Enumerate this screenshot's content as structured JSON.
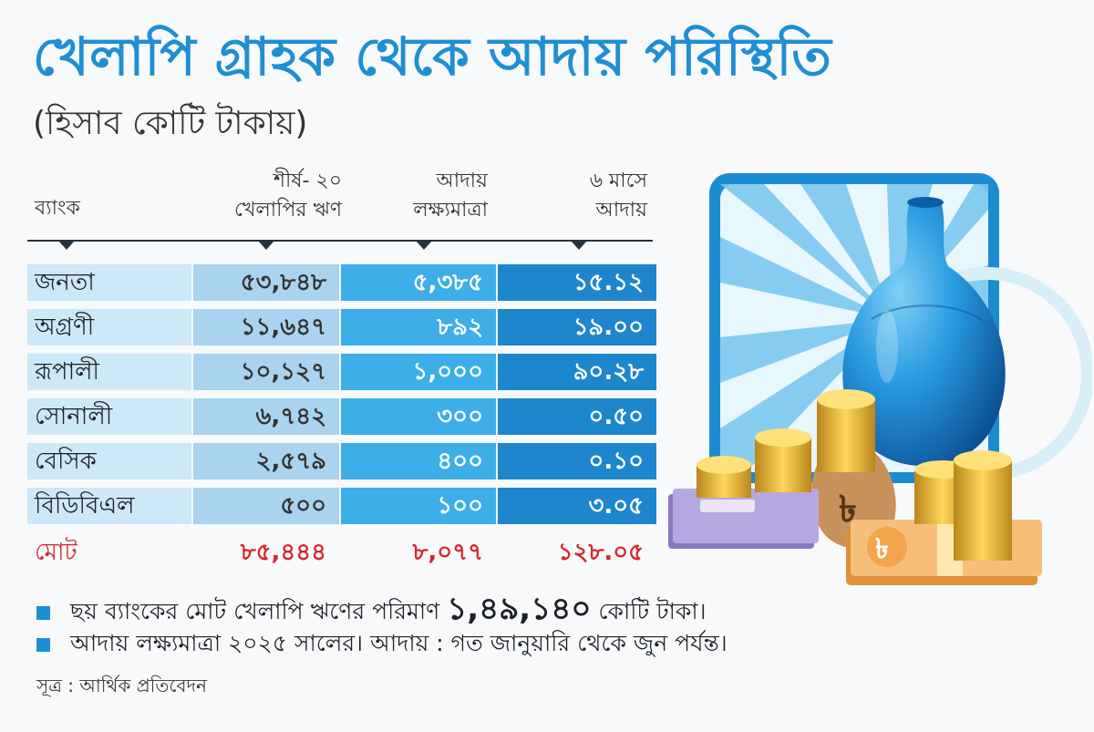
{
  "title": "খেলাপি গ্রাহক থেকে আদায় পরিস্থিতি",
  "subtitle": "(হিসাব কোটি টাকায়)",
  "chart_data": {
    "type": "table",
    "columns": [
      "ব্যাংক",
      "শীর্ষ- ২০ খেলাপির ঋণ",
      "আদায় লক্ষ্যমাত্রা",
      "৬ মাসে আদায়"
    ],
    "header": {
      "bank": "ব্যাংক",
      "loan_line1": "শীর্ষ- ২০",
      "loan_line2": "খেলাপির ঋণ",
      "target_line1": "আদায়",
      "target_line2": "লক্ষ্যমাত্রা",
      "recov_line1": "৬ মাসে",
      "recov_line2": "আদায়"
    },
    "rows": [
      {
        "bank": "জনতা",
        "loan": "৫৩,৮৪৮",
        "target": "৫,৩৮৫",
        "recovered": "১৫.১২"
      },
      {
        "bank": "অগ্রণী",
        "loan": "১১,৬৪৭",
        "target": "৮৯২",
        "recovered": "১৯.০০"
      },
      {
        "bank": "রূপালী",
        "loan": "১০,১২৭",
        "target": "১,০০০",
        "recovered": "৯০.২৮"
      },
      {
        "bank": "সোনালী",
        "loan": "৬,৭৪২",
        "target": "৩০০",
        "recovered": "০.৫০"
      },
      {
        "bank": "বেসিক",
        "loan": "২,৫৭৯",
        "target": "৪০০",
        "recovered": "০.১০"
      },
      {
        "bank": "বিডিবিএল",
        "loan": "৫০০",
        "target": "১০০",
        "recovered": "৩.০৫"
      }
    ],
    "total": {
      "label": "মোট",
      "loan": "৮৫,৪৪৪",
      "target": "৮,০৭৭",
      "recovered": "১২৮.০৫"
    }
  },
  "notes": {
    "n1_pre": "ছয় ব্যাংকের মোট খেলাপি ঋণের পরিমাণ ",
    "n1_value": "১,৪৯,১৪০",
    "n1_post": " কোটি টাকা।",
    "n2": "আদায় লক্ষ্যমাত্রা ২০২৫ সালের। আদায় : গত জানুয়ারি থেকে জুন পর্যন্ত।"
  },
  "source": "সূত্র : আর্থিক প্রতিবেদন",
  "colors": {
    "title": "#1f8fd4",
    "bank_col": "#cde8f7",
    "loan_col": "#a9d3ee",
    "target_col": "#3eaee8",
    "recov_col": "#1d86cc",
    "total": "#d6262e"
  },
  "illustration": {
    "icons": [
      "pot-icon",
      "coin-stack-icon",
      "money-bag-icon",
      "banknote-bundle-icon"
    ],
    "currency_symbol": "৳"
  }
}
